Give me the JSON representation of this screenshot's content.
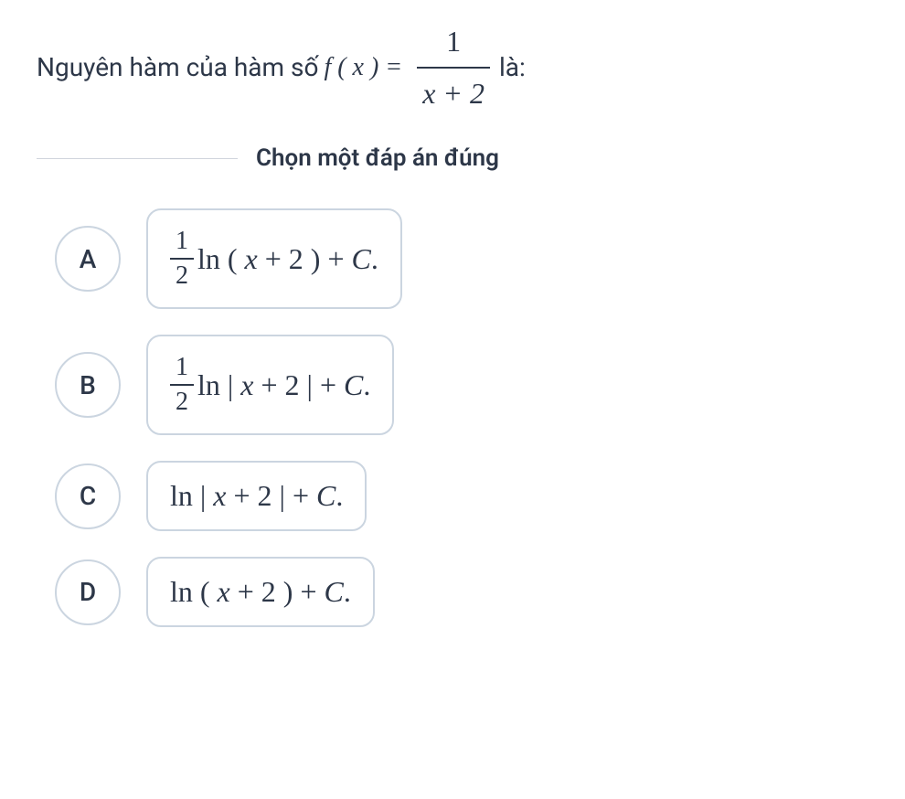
{
  "question": {
    "prefix_text": "Nguyên hàm của hàm số",
    "function_part": "f ( x ) =",
    "fraction": {
      "numerator": "1",
      "denominator": "x + 2"
    },
    "suffix_text": "là:"
  },
  "instruction": "Chọn một đáp án đúng",
  "options": {
    "a": {
      "letter": "A",
      "has_fraction": true,
      "fraction_num": "1",
      "fraction_den": "2",
      "expression": "ln ( x + 2 ) + C."
    },
    "b": {
      "letter": "B",
      "has_fraction": true,
      "fraction_num": "1",
      "fraction_den": "2",
      "expression": "ln | x + 2 | + C."
    },
    "c": {
      "letter": "C",
      "has_fraction": false,
      "expression": "ln | x + 2 | + C."
    },
    "d": {
      "letter": "D",
      "has_fraction": false,
      "expression": "ln ( x + 2 ) + C."
    }
  },
  "styling": {
    "text_color": "#2d3748",
    "border_color": "#cbd5e0",
    "hr_color": "#d0d5dd",
    "background_color": "#ffffff",
    "question_fontsize": 28,
    "instruction_fontsize": 26,
    "option_fontsize": 32,
    "letter_circle_size": 72,
    "border_radius": 16
  }
}
